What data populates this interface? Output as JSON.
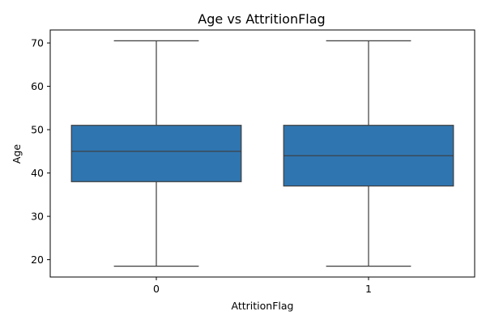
{
  "chart_data": {
    "type": "box",
    "title": "Age vs AttritionFlag",
    "xlabel": "AttritionFlag",
    "ylabel": "Age",
    "categories": [
      "0",
      "1"
    ],
    "ylim": [
      16,
      73
    ],
    "yticks": [
      20,
      30,
      40,
      50,
      60,
      70
    ],
    "grid": false,
    "box_color": "#2f75b0",
    "line_color": "#3d3d3d",
    "boxes": [
      {
        "category": "0",
        "whisker_low": 18.5,
        "q1": 38,
        "median": 45,
        "q3": 51,
        "whisker_high": 70.5
      },
      {
        "category": "1",
        "whisker_low": 18.5,
        "q1": 37,
        "median": 44,
        "q3": 51,
        "whisker_high": 70.5
      }
    ]
  }
}
